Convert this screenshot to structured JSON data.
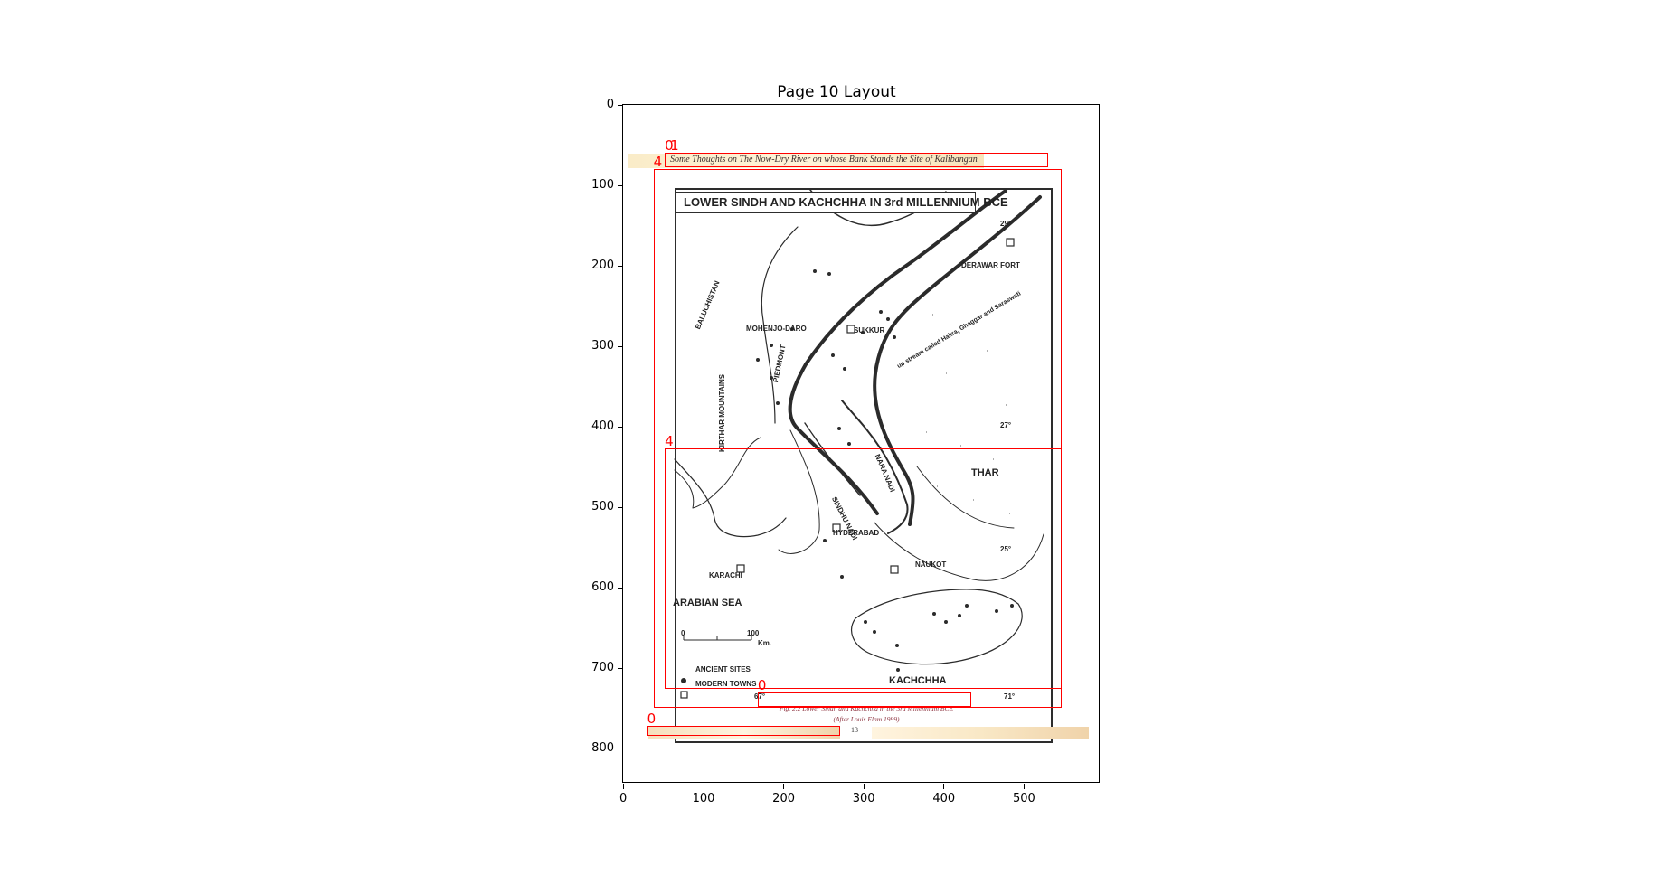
{
  "plot": {
    "title": "Page 10 Layout",
    "y_ticks": [
      "0",
      "100",
      "200",
      "300",
      "400",
      "500",
      "600",
      "700",
      "800"
    ],
    "x_ticks": [
      "0",
      "100",
      "200",
      "300",
      "400",
      "500"
    ]
  },
  "document": {
    "header": "Some Thoughts on The Now-Dry River on whose Bank Stands the Site of Kalibangan",
    "page_number": "13",
    "caption_line1": "Fig. 2.2 Lower Sindh and Kachchha in the 3rd Millennium BCE",
    "caption_line2": "(After Louis Flam 1999)"
  },
  "map": {
    "title": "LOWER SINDH AND KACHCHHA IN 3rd MILLENNIUM BCE",
    "labels": {
      "baluchistan": "BALUCHISTAN",
      "kirthar": "KIRTHAR MOUNTAINS",
      "piedmont": "PIEDMONT",
      "mohenjo": "MOHENJO-DARO",
      "sukkur": "SUKKUR",
      "derawar": "DERAWAR FORT",
      "hakra": "up stream called Hakra, Ghaggar and Saraswati",
      "thar": "THAR",
      "nara": "NARA NADI",
      "sindhu": "SINDHU NADI",
      "hyderabad": "HYDERABAD",
      "naukot": "NAUKOT",
      "karachi": "KARACHI",
      "arabian_sea": "ARABIAN SEA",
      "kachchha": "KACHCHHA",
      "scale0": "0",
      "scale100": "100",
      "km": "Km.",
      "ancient_sites": "ANCIENT SITES",
      "modern_towns": "MODERN TOWNS",
      "lat29": "29°",
      "lat27": "27°",
      "lat25": "25°",
      "lon67": "67°",
      "lon71": "71°"
    }
  },
  "layout_boxes": [
    {
      "label": "0",
      "x1": 52,
      "y1": 60,
      "x2": 531,
      "y2": 77
    },
    {
      "label": "1",
      "x1": 52,
      "y1": 60,
      "x2": 531,
      "y2": 77
    },
    {
      "label": "4",
      "x1": 38,
      "y1": 80,
      "x2": 548,
      "y2": 750
    },
    {
      "label": "4",
      "x1": 52,
      "y1": 427,
      "x2": 548,
      "y2": 726
    },
    {
      "label": "0",
      "x1": 168,
      "y1": 730,
      "x2": 435,
      "y2": 749
    },
    {
      "label": "0",
      "x1": 30,
      "y1": 772,
      "x2": 271,
      "y2": 785
    }
  ],
  "colors": {
    "layout_box": "#ff0000",
    "caption_text": "#8b2f3c",
    "paper_band": "#f6dfbc"
  }
}
